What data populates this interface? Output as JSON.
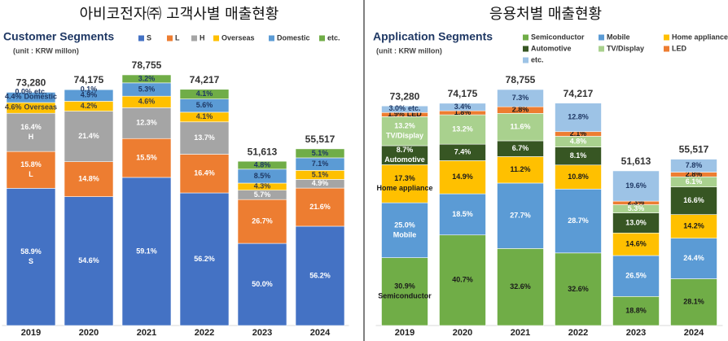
{
  "chart_data": [
    {
      "type": "bar",
      "stacked": true,
      "title": "아비코전자㈜ 고객사별 매출현황",
      "subtitle": "Customer Segments",
      "note": "(unit : KRW millon)",
      "categories": [
        "2019",
        "2020",
        "2021",
        "2022",
        "2023",
        "2024"
      ],
      "totals": {
        "values": [
          73280,
          74175,
          78755,
          74217,
          51613,
          55517
        ],
        "value_labels": [
          "73,280",
          "74,175",
          "78,755",
          "74,217",
          "51,613",
          "55,517"
        ]
      },
      "series": [
        {
          "name": "S",
          "color": "#4472c4",
          "label_color": "#ffffff",
          "values": [
            58.9,
            54.6,
            59.1,
            56.2,
            50.0,
            56.2
          ],
          "value_labels": [
            "58.9%",
            "54.6%",
            "59.1%",
            "56.2%",
            "50.0%",
            "56.2%"
          ]
        },
        {
          "name": "L",
          "color": "#ed7d31",
          "label_color": "#ffffff",
          "values": [
            15.8,
            14.8,
            15.5,
            16.4,
            26.7,
            21.6
          ],
          "value_labels": [
            "15.8%",
            "14.8%",
            "15.5%",
            "16.4%",
            "26.7%",
            "21.6%"
          ]
        },
        {
          "name": "H",
          "color": "#a5a5a5",
          "label_color": "#ffffff",
          "values": [
            16.4,
            21.4,
            12.3,
            13.7,
            5.7,
            4.9
          ],
          "value_labels": [
            "16.4%",
            "21.4%",
            "12.3%",
            "13.7%",
            "5.7%",
            "4.9%"
          ]
        },
        {
          "name": "Overseas",
          "color": "#ffc000",
          "label_color": "#404040",
          "values": [
            4.6,
            4.2,
            4.6,
            4.1,
            4.3,
            5.1
          ],
          "value_labels": [
            "4.6%",
            "4.2%",
            "4.6%",
            "4.1%",
            "4.3%",
            "5.1%"
          ]
        },
        {
          "name": "Domestic",
          "color": "#5b9bd5",
          "label_color": "#1f3864",
          "values": [
            4.4,
            4.9,
            5.3,
            5.6,
            8.5,
            7.1
          ],
          "value_labels": [
            "4.4%",
            "4.9%",
            "5.3%",
            "5.6%",
            "8.5%",
            "7.1%"
          ]
        },
        {
          "name": "etc.",
          "color": "#70ad47",
          "label_color": "#1f3864",
          "values": [
            0.0,
            0.1,
            3.2,
            4.1,
            4.8,
            5.1
          ],
          "value_labels": [
            "0.0%",
            "0.1%",
            "3.2%",
            "4.1%",
            "4.8%",
            "5.1%"
          ]
        }
      ]
    },
    {
      "type": "bar",
      "stacked": true,
      "title": "응용처별 매출현황",
      "subtitle": "Application Segments",
      "note": "(unit : KRW millon)",
      "categories": [
        "2019",
        "2020",
        "2021",
        "2022",
        "2023",
        "2024"
      ],
      "totals": {
        "values": [
          73280,
          74175,
          78755,
          74217,
          51613,
          55517
        ],
        "value_labels": [
          "73,280",
          "74,175",
          "78,755",
          "74,217",
          "51,613",
          "55,517"
        ]
      },
      "series": [
        {
          "name": "Semiconductor",
          "color": "#70ad47",
          "label_color": "#1a1a1a",
          "values": [
            30.9,
            40.7,
            32.6,
            32.6,
            18.8,
            28.1
          ],
          "value_labels": [
            "30.9%",
            "40.7%",
            "32.6%",
            "32.6%",
            "18.8%",
            "28.1%"
          ]
        },
        {
          "name": "Mobile",
          "color": "#5b9bd5",
          "label_color": "#ffffff",
          "values": [
            25.0,
            18.5,
            27.7,
            28.7,
            26.5,
            24.4
          ],
          "value_labels": [
            "25.0%",
            "18.5%",
            "27.7%",
            "28.7%",
            "26.5%",
            "24.4%"
          ]
        },
        {
          "name": "Home appliance",
          "color": "#ffc000",
          "label_color": "#1a1a1a",
          "values": [
            17.3,
            14.9,
            11.2,
            10.8,
            14.6,
            14.2
          ],
          "value_labels": [
            "17.3%",
            "14.9%",
            "11.2%",
            "10.8%",
            "14.6%",
            "14.2%"
          ]
        },
        {
          "name": "Automotive",
          "color": "#375623",
          "label_color": "#ffffff",
          "values": [
            8.7,
            7.4,
            6.7,
            8.1,
            13.0,
            16.6
          ],
          "value_labels": [
            "8.7%",
            "7.4%",
            "6.7%",
            "8.1%",
            "13.0%",
            "16.6%"
          ]
        },
        {
          "name": "TV/Display",
          "color": "#a9d18e",
          "label_color": "#ffffff",
          "values": [
            13.2,
            13.2,
            11.6,
            4.8,
            5.3,
            6.1
          ],
          "value_labels": [
            "13.2%",
            "13.2%",
            "11.6%",
            "4.8%",
            "5.3%",
            "6.1%"
          ]
        },
        {
          "name": "LED",
          "color": "#ed7d31",
          "label_color": "#1a1a1a",
          "values": [
            1.9,
            1.8,
            2.8,
            2.1,
            2.3,
            2.8
          ],
          "value_labels": [
            "1.9%",
            "1.8%",
            "2.8%",
            "2.1%",
            "2.3%",
            "2.8%"
          ]
        },
        {
          "name": "etc.",
          "color": "#9dc3e6",
          "label_color": "#1f3864",
          "values": [
            3.0,
            3.4,
            7.3,
            12.8,
            19.6,
            7.8
          ],
          "value_labels": [
            "3.0%",
            "3.4%",
            "7.3%",
            "12.8%",
            "19.6%",
            "7.8%"
          ]
        }
      ]
    }
  ]
}
